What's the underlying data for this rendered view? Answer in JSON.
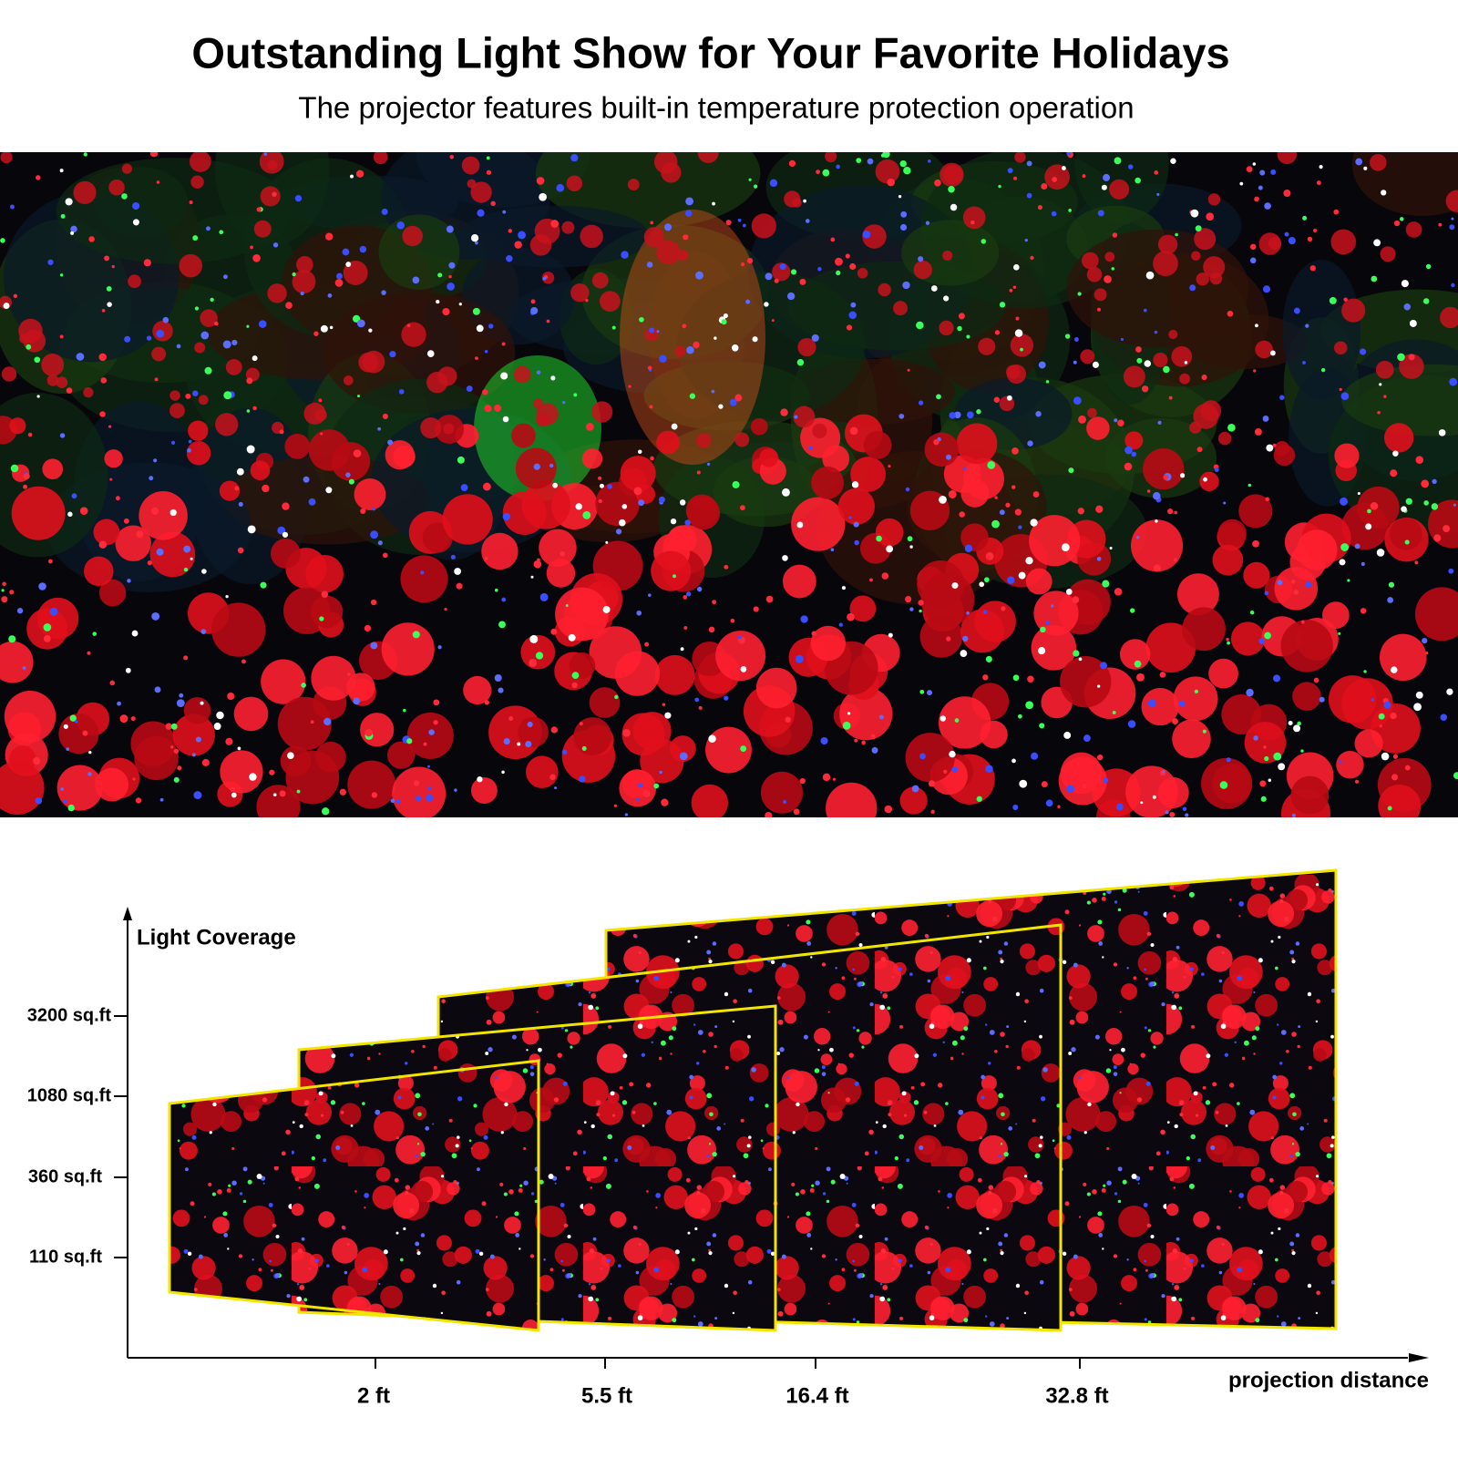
{
  "header": {
    "title": "Outstanding Light Show for Your Favorite Holidays",
    "subtitle": "The projector features built-in temperature protection operation"
  },
  "diagram": {
    "y_axis_label": "Light Coverage",
    "y_ticks": [
      "3200 sq.ft",
      "1080 sq.ft",
      "360 sq.ft",
      "110 sq.ft"
    ],
    "x_axis_label": "projection distance",
    "x_ticks": [
      "2 ft",
      "5.5 ft",
      "16.4 ft",
      "32.8 ft"
    ]
  }
}
